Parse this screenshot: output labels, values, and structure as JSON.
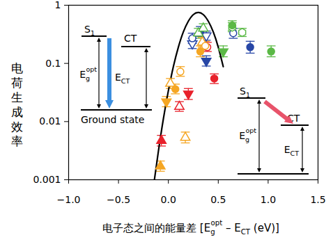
{
  "chart_data": {
    "type": "scatter",
    "x_label": [
      "电子态之间的能量差 [E",
      {
        "sub": "g",
        "sup": "opt"
      },
      " – E",
      {
        "sub": "CT"
      },
      " (eV)]"
    ],
    "y_label": "电荷生成效率",
    "log": "y",
    "xlim": [
      -1,
      1.5
    ],
    "xticks": [
      -1,
      -0.5,
      0,
      0.5,
      1,
      1.5
    ],
    "ylim": [
      0.001,
      1
    ],
    "yticks": [
      0.001,
      0.01,
      0.1,
      1
    ],
    "series": [
      {
        "color": "#e8212b",
        "marker": "triangle-up-filled",
        "x": [
          -0.07
        ],
        "values": [
          0.0047
        ],
        "err_low": [
          0.0038
        ],
        "err_high": [
          0.0058
        ]
      },
      {
        "color": "#e8212b",
        "marker": "triangle-up-open",
        "x": [
          0.11
        ],
        "values": [
          0.018
        ],
        "err_low": [
          0.015
        ],
        "err_high": [
          0.022
        ]
      },
      {
        "color": "#e8212b",
        "marker": "triangle-down-filled",
        "x": [
          0.2
        ],
        "values": [
          0.03
        ],
        "err_low": [
          0.024
        ],
        "err_high": [
          0.037
        ]
      },
      {
        "color": "#e8212b",
        "marker": "circle-filled",
        "x": [
          0.46
        ],
        "values": [
          0.055
        ],
        "err_low": [
          0.045
        ],
        "err_high": [
          0.066
        ]
      },
      {
        "color": "#e8212b",
        "marker": "circle-open",
        "x": [
          0.39
        ],
        "values": [
          0.19
        ],
        "err_low": [
          0.16
        ],
        "err_high": [
          0.23
        ]
      },
      {
        "color": "#f5a623",
        "marker": "triangle-up-filled",
        "x": [
          -0.08
        ],
        "values": [
          0.0017
        ],
        "err_low": [
          0.0014
        ],
        "err_high": [
          0.0021
        ]
      },
      {
        "color": "#f5a623",
        "marker": "triangle-up-open",
        "x": [
          0.17,
          0.02,
          0.34
        ],
        "values": [
          0.0053,
          0.045,
          0.23
        ],
        "err_low": [
          0.0043,
          0.037,
          0.19
        ],
        "err_high": [
          0.0066,
          0.055,
          0.28
        ]
      },
      {
        "color": "#f5a623",
        "marker": "triangle-down-filled",
        "x": [
          -0.02
        ],
        "values": [
          0.022
        ],
        "err_low": [
          0.018
        ],
        "err_high": [
          0.027
        ]
      },
      {
        "color": "#f5a623",
        "marker": "circle-filled",
        "x": [
          0.07,
          0.32
        ],
        "values": [
          0.036,
          0.16
        ],
        "err_low": [
          0.03,
          0.13
        ],
        "err_high": [
          0.044,
          0.2
        ]
      },
      {
        "color": "#f5a623",
        "marker": "circle-open",
        "x": [
          0.12,
          0.37
        ],
        "values": [
          0.072,
          0.2
        ],
        "err_low": [
          0.06,
          0.17
        ],
        "err_high": [
          0.088,
          0.24
        ]
      },
      {
        "color": "#2746a6",
        "marker": "triangle-down-open",
        "x": [
          0.24,
          0.38
        ],
        "values": [
          0.22,
          0.3
        ],
        "err_low": [
          0.18,
          0.25
        ],
        "err_high": [
          0.27,
          0.36
        ]
      },
      {
        "color": "#2746a6",
        "marker": "triangle-down-filled",
        "x": [
          0.38
        ],
        "values": [
          0.11
        ],
        "err_low": [
          0.09
        ],
        "err_high": [
          0.135
        ]
      },
      {
        "color": "#2746a6",
        "marker": "circle-open",
        "x": [
          0.24,
          0.65
        ],
        "values": [
          0.27,
          0.33
        ],
        "err_low": [
          0.22,
          0.27
        ],
        "err_high": [
          0.33,
          0.4
        ]
      },
      {
        "color": "#2746a6",
        "marker": "circle-filled",
        "x": [
          0.32,
          0.82
        ],
        "values": [
          0.35,
          0.19
        ],
        "err_low": [
          0.29,
          0.15
        ],
        "err_high": [
          0.43,
          0.24
        ]
      },
      {
        "color": "#5bb946",
        "marker": "triangle-down-filled",
        "x": [
          0.55
        ],
        "values": [
          0.16
        ],
        "err_low": [
          0.13
        ],
        "err_high": [
          0.2
        ]
      },
      {
        "color": "#5bb946",
        "marker": "triangle-up-open",
        "x": [
          0.3,
          0.35
        ],
        "values": [
          0.33,
          0.4
        ],
        "err_low": [
          0.27,
          0.33
        ],
        "err_high": [
          0.4,
          0.48
        ]
      },
      {
        "color": "#5bb946",
        "marker": "hexagon-open",
        "x": [
          0.64,
          0.74
        ],
        "values": [
          0.42,
          0.34
        ],
        "err_low": [
          0.35,
          0.29
        ],
        "err_high": [
          0.5,
          0.4
        ]
      },
      {
        "color": "#5bb946",
        "marker": "circle-filled",
        "x": [
          1.03,
          0.64
        ],
        "values": [
          0.16,
          0.45
        ],
        "err_low": [
          0.13,
          0.37
        ],
        "err_high": [
          0.2,
          0.54
        ]
      },
      {
        "type": "line",
        "color": "#000000",
        "x": [
          -0.14,
          -0.1,
          -0.05,
          0,
          0.05,
          0.1,
          0.15,
          0.2,
          0.25,
          0.3,
          0.35,
          0.4,
          0.45,
          0.5,
          0.55
        ],
        "values": [
          0.001,
          0.0031,
          0.0112,
          0.034,
          0.088,
          0.19,
          0.347,
          0.53,
          0.69,
          0.75,
          0.69,
          0.53,
          0.347,
          0.19,
          0.088
        ]
      }
    ],
    "insets": [
      {
        "color": "#3b8fe0",
        "s1": [
          "S",
          {
            "sub": "1"
          }
        ],
        "ct": [
          "CT"
        ],
        "ground": [
          "Ground state"
        ],
        "eg": [
          "E",
          {
            "sub": "g",
            "sup": "opt"
          }
        ],
        "ect": [
          "E",
          {
            "sub": "CT"
          }
        ]
      },
      {
        "color": "#e8536a",
        "s1": [
          "S",
          {
            "sub": "1"
          }
        ],
        "ct": [
          "CT"
        ],
        "eg": [
          "E",
          {
            "sub": "g",
            "sup": "opt"
          }
        ],
        "ect": [
          "E",
          {
            "sub": "CT"
          }
        ]
      }
    ]
  }
}
